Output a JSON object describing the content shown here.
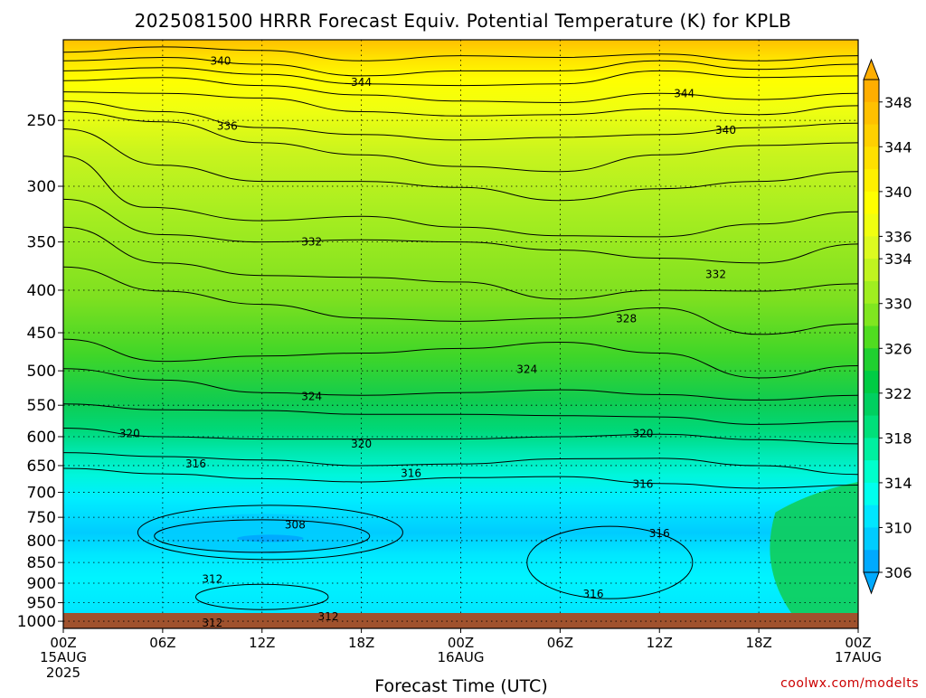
{
  "chart_data": {
    "type": "heatmap",
    "title": "2025081500 HRRR Forecast Equiv. Potential Temperature (K) for KPLB",
    "xlabel": "Forecast Time (UTC)",
    "ylabel": "",
    "x_ticks": [
      {
        "hour": 0,
        "label": "00Z",
        "sub": [
          "15AUG",
          "2025"
        ]
      },
      {
        "hour": 6,
        "label": "06Z",
        "sub": []
      },
      {
        "hour": 12,
        "label": "12Z",
        "sub": []
      },
      {
        "hour": 18,
        "label": "18Z",
        "sub": []
      },
      {
        "hour": 24,
        "label": "00Z",
        "sub": [
          "16AUG"
        ]
      },
      {
        "hour": 30,
        "label": "06Z",
        "sub": []
      },
      {
        "hour": 36,
        "label": "12Z",
        "sub": []
      },
      {
        "hour": 42,
        "label": "18Z",
        "sub": []
      },
      {
        "hour": 48,
        "label": "00Z",
        "sub": [
          "17AUG"
        ]
      }
    ],
    "xlim": [
      0,
      48
    ],
    "y_ticks": [
      250,
      300,
      350,
      400,
      450,
      500,
      550,
      600,
      650,
      700,
      750,
      800,
      850,
      900,
      950,
      1000
    ],
    "ylim": [
      1020,
      200
    ],
    "y_scale": "log-pressure",
    "grid": true,
    "colorbar": {
      "labels": [
        306,
        310,
        314,
        318,
        322,
        326,
        330,
        334,
        336,
        340,
        344,
        348
      ],
      "levels": [
        306,
        308,
        310,
        312,
        314,
        316,
        318,
        320,
        322,
        324,
        326,
        328,
        330,
        332,
        334,
        336,
        338,
        340,
        342,
        344,
        346,
        348,
        350
      ],
      "colors": [
        "#00aaff",
        "#00ccff",
        "#00e6ff",
        "#00ffee",
        "#00ffcc",
        "#00f0a0",
        "#00e07a",
        "#00d060",
        "#00cc44",
        "#20d030",
        "#50dc20",
        "#80e620",
        "#a0ee20",
        "#c0f420",
        "#dcfa20",
        "#f0ff10",
        "#ffff00",
        "#fff000",
        "#ffe000",
        "#ffd000",
        "#ffc000",
        "#ffae00"
      ],
      "orientation": "vertical-right"
    },
    "contour_labels": [
      {
        "value": "340",
        "hour": 9.5,
        "p": 212
      },
      {
        "value": "344",
        "hour": 18.0,
        "p": 225
      },
      {
        "value": "344",
        "hour": 37.5,
        "p": 232
      },
      {
        "value": "336",
        "hour": 9.9,
        "p": 254
      },
      {
        "value": "340",
        "hour": 40.0,
        "p": 257
      },
      {
        "value": "332",
        "hour": 15.0,
        "p": 350
      },
      {
        "value": "332",
        "hour": 39.4,
        "p": 383
      },
      {
        "value": "328",
        "hour": 34.0,
        "p": 433
      },
      {
        "value": "324",
        "hour": 28.0,
        "p": 498
      },
      {
        "value": "324",
        "hour": 15.0,
        "p": 537
      },
      {
        "value": "320",
        "hour": 4.0,
        "p": 595
      },
      {
        "value": "320",
        "hour": 18.0,
        "p": 612
      },
      {
        "value": "320",
        "hour": 35.0,
        "p": 595
      },
      {
        "value": "316",
        "hour": 8.0,
        "p": 647
      },
      {
        "value": "316",
        "hour": 21.0,
        "p": 664
      },
      {
        "value": "316",
        "hour": 35.0,
        "p": 684
      },
      {
        "value": "308",
        "hour": 14.0,
        "p": 766
      },
      {
        "value": "316",
        "hour": 36.0,
        "p": 784
      },
      {
        "value": "312",
        "hour": 9.0,
        "p": 890
      },
      {
        "value": "316",
        "hour": 32.0,
        "p": 928
      },
      {
        "value": "312",
        "hour": 16.0,
        "p": 987
      },
      {
        "value": "312",
        "hour": 9.0,
        "p": 1005
      }
    ],
    "contour_lines": [
      [
        [
          0,
          207
        ],
        [
          6,
          204
        ],
        [
          12,
          206
        ],
        [
          18,
          212
        ],
        [
          24,
          209
        ],
        [
          30,
          210
        ],
        [
          36,
          208
        ],
        [
          42,
          212
        ],
        [
          48,
          209
        ]
      ],
      [
        [
          0,
          212
        ],
        [
          6,
          210
        ],
        [
          12,
          214
        ],
        [
          18,
          221
        ],
        [
          24,
          218
        ],
        [
          30,
          218
        ],
        [
          36,
          212
        ],
        [
          42,
          217
        ],
        [
          48,
          214
        ]
      ],
      [
        [
          0,
          218
        ],
        [
          6,
          216
        ],
        [
          12,
          220
        ],
        [
          18,
          226
        ],
        [
          24,
          227
        ],
        [
          30,
          226
        ],
        [
          36,
          218
        ],
        [
          42,
          222
        ],
        [
          48,
          221
        ]
      ],
      [
        [
          0,
          224
        ],
        [
          6,
          222
        ],
        [
          12,
          227
        ],
        [
          18,
          233
        ],
        [
          24,
          237
        ],
        [
          30,
          238
        ],
        [
          36,
          232
        ],
        [
          42,
          236
        ],
        [
          48,
          232
        ]
      ],
      [
        [
          0,
          231
        ],
        [
          6,
          232
        ],
        [
          12,
          235
        ],
        [
          18,
          244
        ],
        [
          24,
          247
        ],
        [
          30,
          246
        ],
        [
          36,
          242
        ],
        [
          42,
          246
        ],
        [
          48,
          240
        ]
      ],
      [
        [
          0,
          237
        ],
        [
          6,
          244
        ],
        [
          12,
          255
        ],
        [
          18,
          260
        ],
        [
          24,
          264
        ],
        [
          30,
          262
        ],
        [
          36,
          260
        ],
        [
          42,
          255
        ],
        [
          48,
          252
        ]
      ],
      [
        [
          0,
          244
        ],
        [
          6,
          251
        ],
        [
          12,
          266
        ],
        [
          18,
          275
        ],
        [
          24,
          284
        ],
        [
          30,
          288
        ],
        [
          36,
          275
        ],
        [
          42,
          268
        ],
        [
          48,
          266
        ]
      ],
      [
        [
          0,
          256
        ],
        [
          6,
          283
        ],
        [
          12,
          296
        ],
        [
          18,
          296
        ],
        [
          24,
          301
        ],
        [
          30,
          312
        ],
        [
          36,
          302
        ],
        [
          42,
          296
        ],
        [
          48,
          288
        ]
      ],
      [
        [
          0,
          276
        ],
        [
          5,
          318
        ],
        [
          12,
          330
        ],
        [
          18,
          326
        ],
        [
          24,
          336
        ],
        [
          30,
          344
        ],
        [
          36,
          345
        ],
        [
          42,
          333
        ],
        [
          48,
          322
        ]
      ],
      [
        [
          0,
          311
        ],
        [
          6,
          343
        ],
        [
          12,
          350
        ],
        [
          18,
          348
        ],
        [
          24,
          350
        ],
        [
          30,
          358
        ],
        [
          36,
          366
        ],
        [
          42,
          371
        ],
        [
          48,
          352
        ]
      ],
      [
        [
          0,
          336
        ],
        [
          6,
          371
        ],
        [
          12,
          384
        ],
        [
          18,
          386
        ],
        [
          24,
          391
        ],
        [
          30,
          410
        ],
        [
          36,
          400
        ],
        [
          42,
          401
        ],
        [
          48,
          393
        ]
      ],
      [
        [
          0,
          375
        ],
        [
          6,
          401
        ],
        [
          12,
          416
        ],
        [
          18,
          432
        ],
        [
          24,
          436
        ],
        [
          30,
          432
        ],
        [
          36,
          420
        ],
        [
          42,
          452
        ],
        [
          48,
          439
        ]
      ],
      [
        [
          0,
          458
        ],
        [
          6,
          487
        ],
        [
          12,
          480
        ],
        [
          18,
          476
        ],
        [
          24,
          470
        ],
        [
          30,
          462
        ],
        [
          36,
          476
        ],
        [
          42,
          510
        ],
        [
          48,
          493
        ]
      ],
      [
        [
          0,
          497
        ],
        [
          6,
          513
        ],
        [
          12,
          531
        ],
        [
          18,
          535
        ],
        [
          24,
          531
        ],
        [
          30,
          527
        ],
        [
          36,
          534
        ],
        [
          42,
          542
        ],
        [
          48,
          535
        ]
      ],
      [
        [
          0,
          548
        ],
        [
          6,
          557
        ],
        [
          12,
          558
        ],
        [
          18,
          564
        ],
        [
          24,
          564
        ],
        [
          30,
          566
        ],
        [
          36,
          568
        ],
        [
          42,
          580
        ],
        [
          48,
          575
        ]
      ],
      [
        [
          0,
          586
        ],
        [
          6,
          600
        ],
        [
          12,
          604
        ],
        [
          18,
          604
        ],
        [
          24,
          604
        ],
        [
          30,
          600
        ],
        [
          36,
          596
        ],
        [
          42,
          605
        ],
        [
          48,
          612
        ]
      ],
      [
        [
          0,
          627
        ],
        [
          6,
          634
        ],
        [
          12,
          640
        ],
        [
          18,
          650
        ],
        [
          24,
          647
        ],
        [
          30,
          638
        ],
        [
          36,
          637
        ],
        [
          42,
          650
        ],
        [
          48,
          666
        ]
      ],
      [
        [
          0,
          655
        ],
        [
          6,
          665
        ],
        [
          12,
          674
        ],
        [
          18,
          680
        ],
        [
          24,
          672
        ],
        [
          30,
          670
        ],
        [
          36,
          683
        ],
        [
          42,
          692
        ],
        [
          48,
          686
        ]
      ]
    ]
  }
}
